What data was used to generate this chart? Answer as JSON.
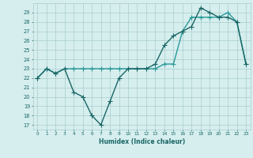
{
  "xlabel": "Humidex (Indice chaleur)",
  "background_color": "#d6eeee",
  "grid_color": "#aacccc",
  "line_color1": "#1a6666",
  "line_color2": "#2a9999",
  "xlim": [
    -0.5,
    23.5
  ],
  "ylim": [
    16.5,
    30.0
  ],
  "yticks": [
    17,
    18,
    19,
    20,
    21,
    22,
    23,
    24,
    25,
    26,
    27,
    28,
    29
  ],
  "xticks": [
    0,
    1,
    2,
    3,
    4,
    5,
    6,
    7,
    8,
    9,
    10,
    11,
    12,
    13,
    14,
    15,
    16,
    17,
    18,
    19,
    20,
    21,
    22,
    23
  ],
  "series1_x": [
    0,
    1,
    2,
    3,
    4,
    5,
    6,
    7,
    8,
    9,
    10,
    11,
    12,
    13,
    14,
    15,
    16,
    17,
    18,
    19,
    20,
    21,
    22,
    23
  ],
  "series1_y": [
    22,
    23,
    22.5,
    23,
    20.5,
    20,
    18,
    17,
    19.5,
    22,
    23,
    23,
    23,
    23.5,
    25.5,
    26.5,
    27,
    27.5,
    29.5,
    29,
    28.5,
    28.5,
    28,
    23.5
  ],
  "series2_x": [
    0,
    1,
    2,
    3,
    4,
    5,
    6,
    7,
    8,
    9,
    10,
    11,
    12,
    13,
    14,
    15,
    16,
    17,
    18,
    19,
    20,
    21,
    22,
    23
  ],
  "series2_y": [
    22,
    23,
    22.5,
    23,
    23,
    23,
    23,
    23,
    23,
    23,
    23,
    23,
    23,
    23,
    23.5,
    23.5,
    27,
    28.5,
    28.5,
    28.5,
    28.5,
    29,
    28,
    23.5
  ],
  "marker": "+",
  "markersize": 4,
  "linewidth": 1.0
}
